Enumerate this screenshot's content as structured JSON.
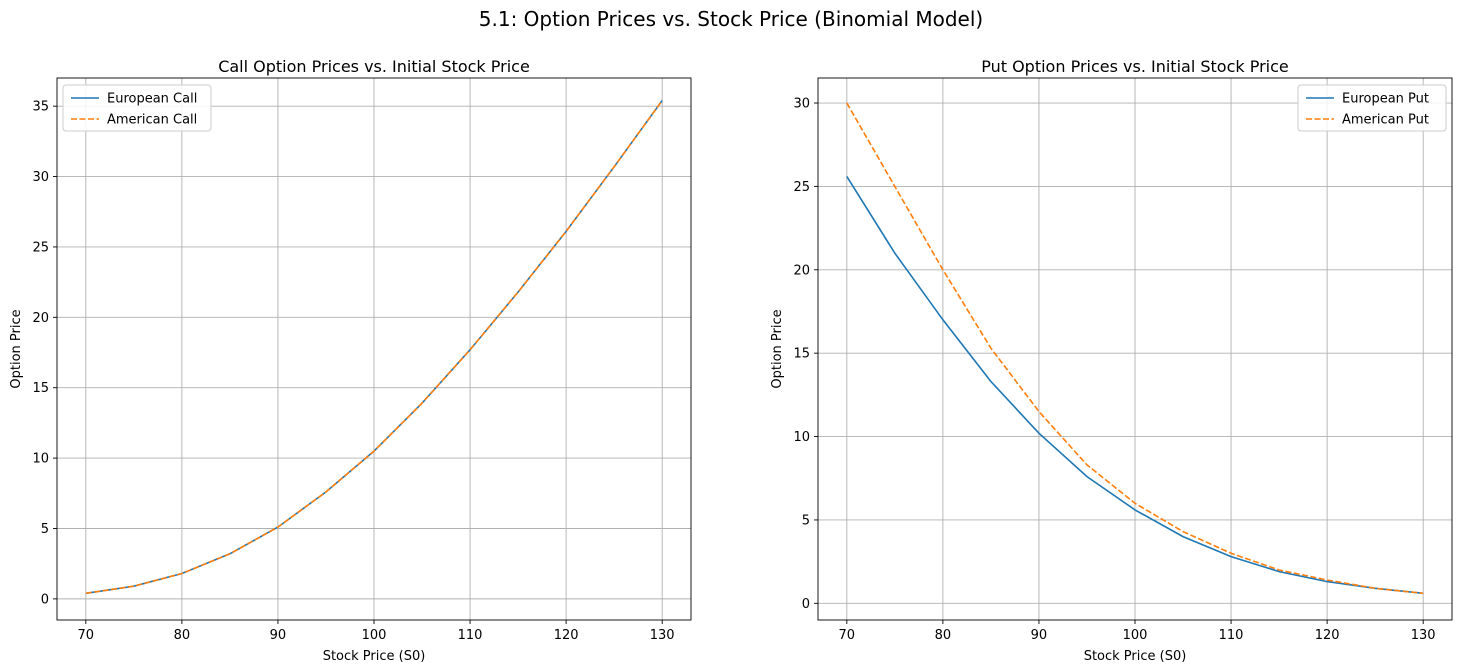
{
  "suptitle": "5.1: Option Prices vs. Stock Price (Binomial Model)",
  "chart_data": [
    {
      "type": "line",
      "title": "Call Option Prices vs. Initial Stock Price",
      "xlabel": "Stock Price (S0)",
      "ylabel": "Option Price",
      "xlim": [
        67,
        133
      ],
      "ylim": [
        -1.5,
        37
      ],
      "xticks": [
        70,
        80,
        90,
        100,
        110,
        120,
        130
      ],
      "yticks": [
        0,
        5,
        10,
        15,
        20,
        25,
        30,
        35
      ],
      "grid": true,
      "legend_position": "upper left",
      "x": [
        70,
        75,
        80,
        85,
        90,
        95,
        100,
        105,
        110,
        115,
        120,
        125,
        130
      ],
      "series": [
        {
          "name": "European Call",
          "color": "#1f77b4",
          "style": "solid",
          "values": [
            0.4,
            0.9,
            1.8,
            3.2,
            5.1,
            7.6,
            10.5,
            13.9,
            17.7,
            21.8,
            26.1,
            30.7,
            35.4
          ]
        },
        {
          "name": "American Call",
          "color": "#ff7f0e",
          "style": "dashed",
          "values": [
            0.4,
            0.9,
            1.8,
            3.2,
            5.1,
            7.6,
            10.5,
            13.9,
            17.7,
            21.8,
            26.1,
            30.7,
            35.4
          ]
        }
      ]
    },
    {
      "type": "line",
      "title": "Put Option Prices vs. Initial Stock Price",
      "xlabel": "Stock Price (S0)",
      "ylabel": "Option Price",
      "xlim": [
        67,
        133
      ],
      "ylim": [
        -1,
        31.5
      ],
      "xticks": [
        70,
        80,
        90,
        100,
        110,
        120,
        130
      ],
      "yticks": [
        0,
        5,
        10,
        15,
        20,
        25,
        30
      ],
      "grid": true,
      "legend_position": "upper right",
      "x": [
        70,
        75,
        80,
        85,
        90,
        95,
        100,
        105,
        110,
        115,
        120,
        125,
        130
      ],
      "series": [
        {
          "name": "European Put",
          "color": "#1f77b4",
          "style": "solid",
          "values": [
            25.6,
            21.0,
            17.0,
            13.3,
            10.2,
            7.6,
            5.6,
            4.0,
            2.8,
            1.9,
            1.3,
            0.9,
            0.6
          ]
        },
        {
          "name": "American Put",
          "color": "#ff7f0e",
          "style": "dashed",
          "values": [
            30.0,
            25.0,
            20.0,
            15.3,
            11.5,
            8.3,
            6.0,
            4.3,
            3.0,
            2.0,
            1.4,
            0.9,
            0.6
          ]
        }
      ]
    }
  ]
}
